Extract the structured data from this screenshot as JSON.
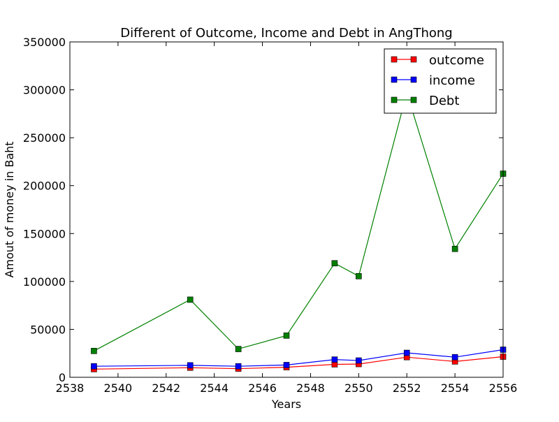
{
  "chart_data": {
    "type": "line",
    "title": "Different of Outcome, Income and Debt in AngThong",
    "xlabel": "Years",
    "ylabel": "Amout of money in Baht",
    "xlim": [
      2538,
      2556
    ],
    "ylim": [
      0,
      350000
    ],
    "xticks": [
      2538,
      2540,
      2542,
      2544,
      2546,
      2548,
      2550,
      2552,
      2554,
      2556
    ],
    "yticks": [
      0,
      50000,
      100000,
      150000,
      200000,
      250000,
      300000,
      350000
    ],
    "grid": false,
    "legend_position": "upper right",
    "x": [
      2539,
      2543,
      2545,
      2547,
      2549,
      2550,
      2552,
      2554,
      2556
    ],
    "series": [
      {
        "name": "outcome",
        "color": "#ff0000",
        "values": [
          8500,
          10000,
          9000,
          10500,
          13500,
          13800,
          21000,
          16500,
          21500
        ]
      },
      {
        "name": "income",
        "color": "#0000ff",
        "values": [
          11500,
          12500,
          11500,
          12800,
          18500,
          17500,
          25500,
          21000,
          28800
        ]
      },
      {
        "name": "Debt",
        "color": "#008000",
        "values": [
          27500,
          81000,
          29500,
          43500,
          119000,
          105500,
          297000,
          134000,
          212500
        ]
      }
    ]
  }
}
